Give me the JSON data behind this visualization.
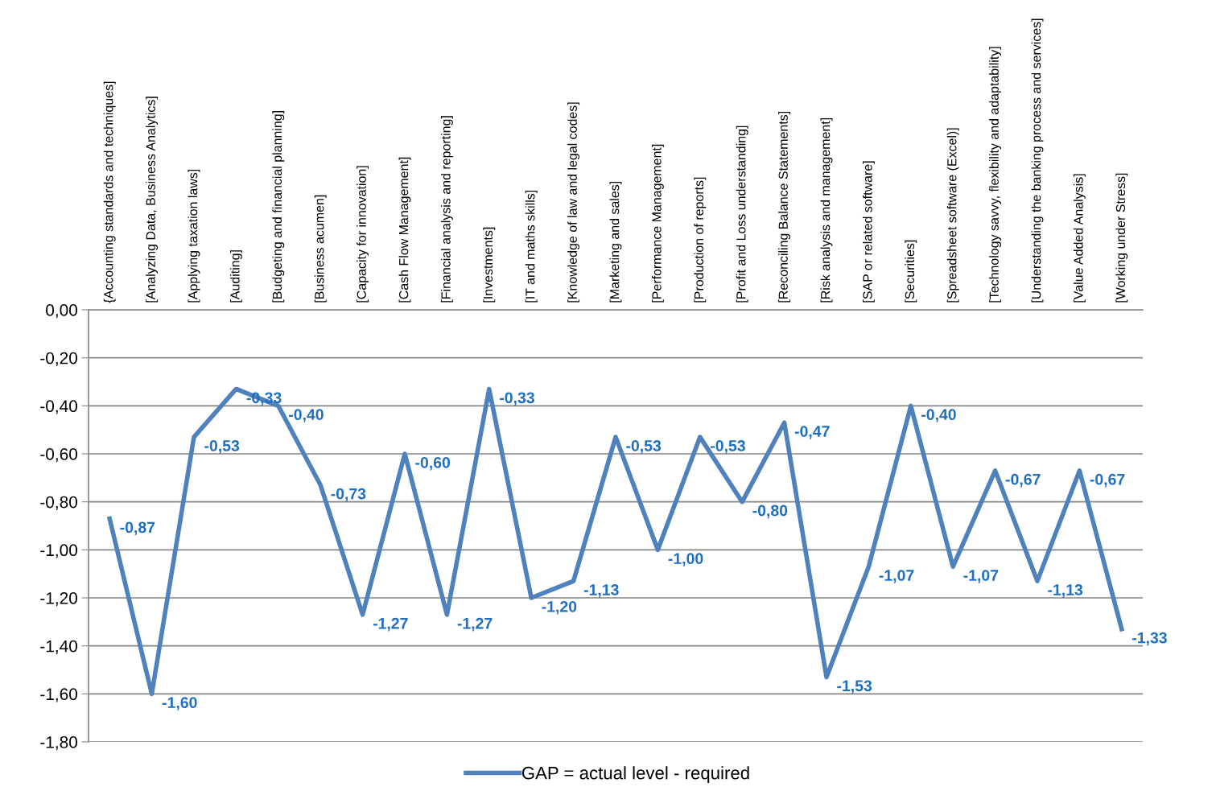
{
  "chart_data": {
    "type": "line",
    "categories": [
      "{Accounting standards and techniques]",
      "[Analyzing Data, Business Analytics]",
      "[Applying taxation laws]",
      "[Auditing]",
      "[Budgeting and financial planning]",
      "[Business acumen]",
      "[Capacity for innovation]",
      "[Cash Flow Management]",
      "[Financial analysis and reporting]",
      "[Investments]",
      "[IT and maths skills]",
      "[Knowledge of law and legal codes]",
      "[Marketing and sales]",
      "[Performance Management]",
      "[Production of reports]",
      "[Profit and Loss understanding]",
      "[Reconciling Balance Statements]",
      "[Risk analysis and management]",
      "[SAP or related software]",
      "[Securities]",
      "[Spreadsheet software (Excel)]",
      "[Technology savvy, flexibility and adaptability]",
      "[Understanding the banking process and services]",
      "[Value Added Analysis]",
      "[Working under Stress]"
    ],
    "series": [
      {
        "name": "GAP = actual level - required",
        "color": "#4f81bd",
        "values": [
          -0.87,
          -1.6,
          -0.53,
          -0.33,
          -0.4,
          -0.73,
          -1.27,
          -0.6,
          -1.27,
          -0.33,
          -1.2,
          -1.13,
          -0.53,
          -1.0,
          -0.53,
          -0.8,
          -0.47,
          -1.53,
          -1.07,
          -0.4,
          -1.07,
          -0.67,
          -1.13,
          -0.67,
          -1.33
        ],
        "value_labels": [
          "-0,87",
          "-1,60",
          "-0,53",
          "-0,33",
          "-0,40",
          "-0,73",
          "-1,27",
          "-0,60",
          "-1,27",
          "-0,33",
          "-1,20",
          "-1,13",
          "-0,53",
          "-1,00",
          "-0,53",
          "-0,80",
          "-0,47",
          "-1,53",
          "-1,07",
          "-0,40",
          "-1,07",
          "-0,67",
          "-1,13",
          "-0,67",
          "-1,33"
        ]
      }
    ],
    "ylim": [
      -1.8,
      0
    ],
    "yticks": [
      {
        "value": -1.8,
        "label": "-1,80"
      },
      {
        "value": -1.6,
        "label": "-1,60"
      },
      {
        "value": -1.4,
        "label": "-1,40"
      },
      {
        "value": -1.2,
        "label": "-1,20"
      },
      {
        "value": -1.0,
        "label": "-1,00"
      },
      {
        "value": -0.8,
        "label": "-0,80"
      },
      {
        "value": -0.6,
        "label": "-0,60"
      },
      {
        "value": -0.4,
        "label": "-0,40"
      },
      {
        "value": -0.2,
        "label": "-0,20"
      },
      {
        "value": 0,
        "label": "0,00"
      }
    ],
    "grid": "y",
    "legend": "bottom",
    "marker": "none",
    "line_style": "solid"
  }
}
